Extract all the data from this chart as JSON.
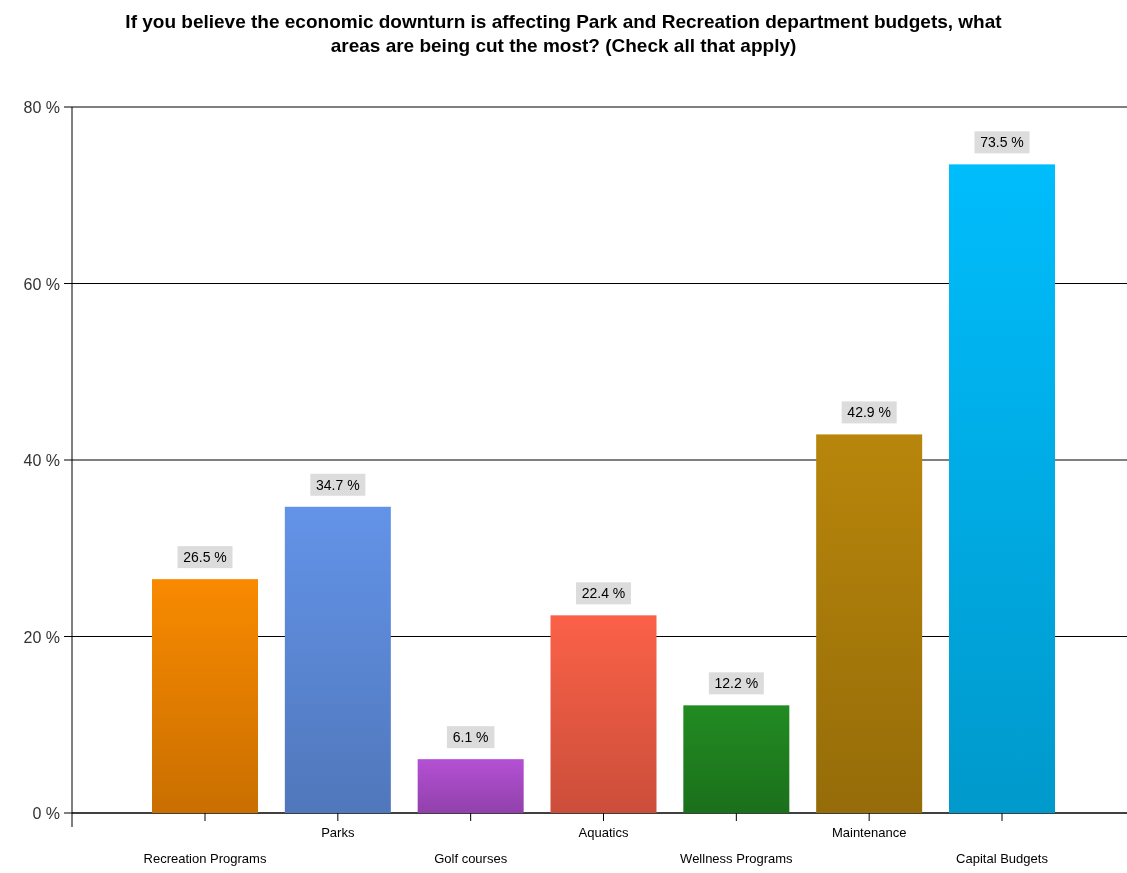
{
  "chart_data": {
    "type": "bar",
    "title": "If you believe the economic downturn is affecting Park and Recreation department budgets, what areas are being cut the most? (Check all that apply)",
    "categories": [
      "Recreation Programs",
      "Parks",
      "Golf courses",
      "Aquatics",
      "Wellness Programs",
      "Maintenance",
      "Capital Budgets"
    ],
    "values": [
      26.5,
      34.7,
      6.1,
      22.4,
      12.2,
      42.9,
      73.5
    ],
    "value_labels": [
      "26.5 %",
      "34.7 %",
      "6.1 %",
      "22.4 %",
      "12.2 %",
      "42.9 %",
      "73.5 %"
    ],
    "colors": [
      "#f98a00",
      "#6393e8",
      "#b450d4",
      "#fb6148",
      "#228b22",
      "#b8860b",
      "#00bdfc"
    ],
    "ylim": [
      0,
      80
    ],
    "yticks": [
      {
        "value": 0,
        "label": "0 %"
      },
      {
        "value": 20,
        "label": "20 %"
      },
      {
        "value": 40,
        "label": "40 %"
      },
      {
        "value": 60,
        "label": "60 %"
      },
      {
        "value": 80,
        "label": "80 %"
      }
    ],
    "grid": "y"
  }
}
